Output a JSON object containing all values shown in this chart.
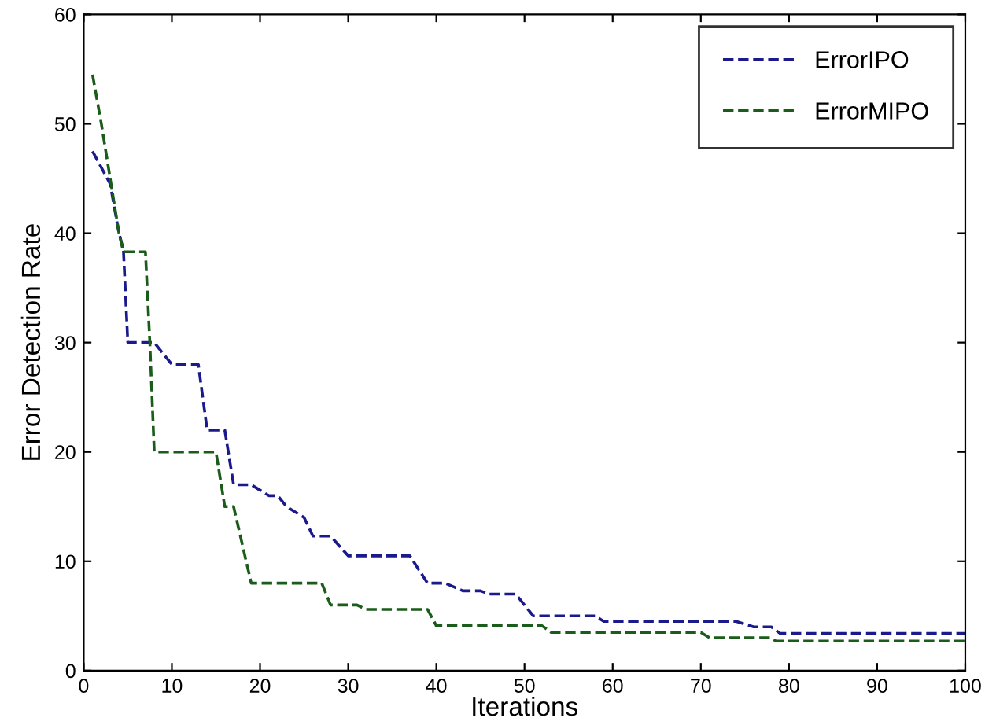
{
  "chart_data": {
    "type": "line",
    "xlabel": "Iterations",
    "ylabel": "Error Detection Rate",
    "xlim": [
      0,
      100
    ],
    "ylim": [
      0,
      60
    ],
    "xticks": [
      0,
      10,
      20,
      30,
      40,
      50,
      60,
      70,
      80,
      90,
      100
    ],
    "yticks": [
      0,
      10,
      20,
      30,
      40,
      50,
      60
    ],
    "grid": false,
    "legend": "top right",
    "line_style": "dashed",
    "marker": "none",
    "series": [
      {
        "name": "ErrorIPO",
        "color": "#1a1a8c",
        "x": [
          1,
          3,
          4,
          4.5,
          5,
          8,
          10,
          13,
          14,
          16,
          17,
          19,
          21,
          22,
          23,
          25,
          26,
          28,
          30,
          37,
          39,
          41,
          43,
          45,
          46,
          49,
          51,
          58,
          59,
          74,
          76,
          78,
          79,
          100
        ],
        "values": [
          47.5,
          44.5,
          40,
          38.5,
          30,
          30,
          28,
          28,
          22,
          22,
          17,
          17,
          16,
          16,
          15,
          14,
          12.3,
          12.3,
          10.5,
          10.5,
          8,
          8,
          7.3,
          7.3,
          7,
          7,
          5,
          5,
          4.5,
          4.5,
          4,
          4,
          3.4,
          3.4
        ]
      },
      {
        "name": "ErrorMIPO",
        "color": "#1a5c1a",
        "x": [
          1,
          2,
          3,
          4,
          4.5,
          7,
          7.5,
          8,
          15,
          16,
          17,
          19,
          27,
          28,
          31,
          32,
          39,
          40,
          52,
          53,
          70,
          71,
          78,
          78.5,
          100
        ],
        "values": [
          54.5,
          50,
          45,
          40,
          38.3,
          38.3,
          30,
          20,
          20,
          15,
          15,
          8,
          8,
          6,
          6,
          5.6,
          5.6,
          4.1,
          4.1,
          3.5,
          3.5,
          3,
          3,
          2.7,
          2.7
        ]
      }
    ]
  }
}
